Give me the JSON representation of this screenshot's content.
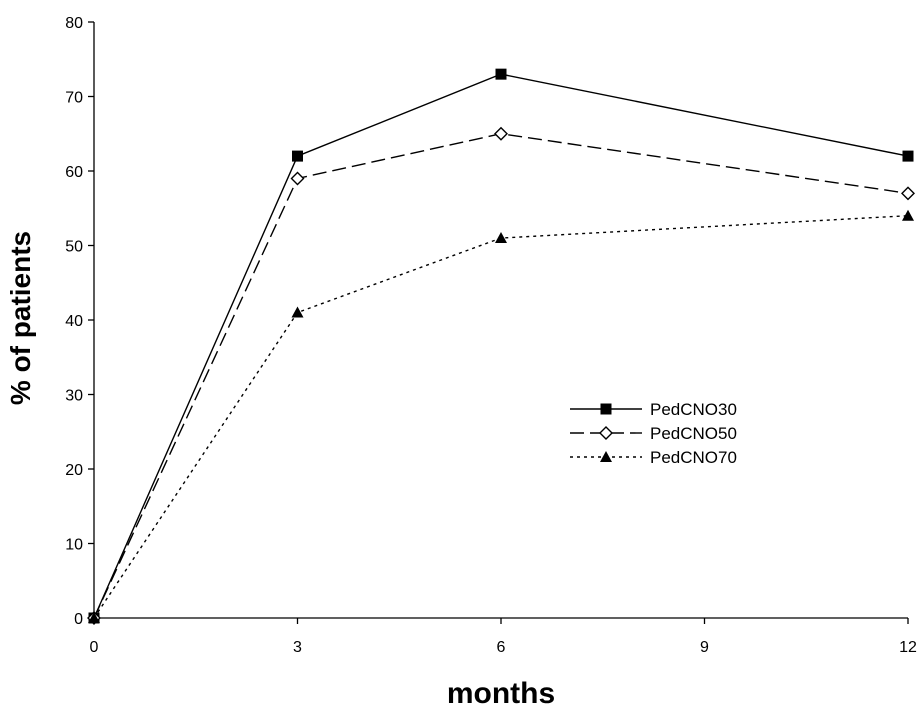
{
  "chart_data": {
    "type": "line",
    "title": "",
    "xlabel": "months",
    "ylabel": "% of patients",
    "x": [
      0,
      3,
      6,
      12
    ],
    "xlim": [
      0,
      12
    ],
    "ylim": [
      0,
      80
    ],
    "xticks": [
      0,
      3,
      6,
      9,
      12
    ],
    "yticks": [
      0,
      10,
      20,
      30,
      40,
      50,
      60,
      70,
      80
    ],
    "grid": false,
    "legend_position": "center-right",
    "series": [
      {
        "name": "PedCNO30",
        "values": [
          0,
          62,
          73,
          62
        ],
        "marker": "filled-square",
        "line": "solid",
        "color": "#000000"
      },
      {
        "name": "PedCNO50",
        "values": [
          0,
          59,
          65,
          57
        ],
        "marker": "open-diamond",
        "line": "dashed",
        "color": "#000000"
      },
      {
        "name": "PedCNO70",
        "values": [
          0,
          41,
          51,
          54
        ],
        "marker": "filled-triangle",
        "line": "dotted",
        "color": "#000000"
      }
    ]
  }
}
